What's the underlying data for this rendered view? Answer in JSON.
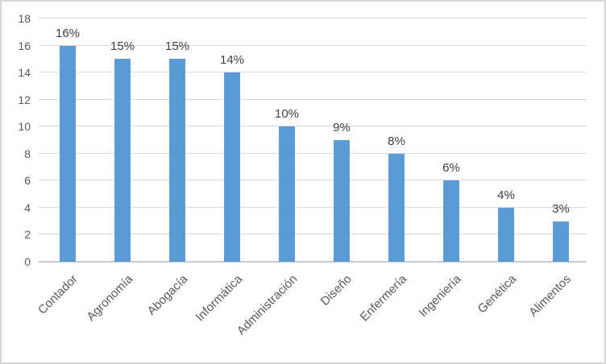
{
  "chart_data": {
    "type": "bar",
    "title": "",
    "xlabel": "",
    "ylabel": "",
    "categories": [
      "Contador",
      "Agronomía",
      "Abogacía",
      "Informática",
      "Administración",
      "Diseño",
      "Enfermería",
      "Ingeniería",
      "Genética",
      "Alimentos"
    ],
    "values": [
      16,
      15,
      15,
      14,
      10,
      9,
      8,
      6,
      4,
      3
    ],
    "data_labels": [
      "16%",
      "15%",
      "15%",
      "14%",
      "10%",
      "9%",
      "8%",
      "6%",
      "4%",
      "3%"
    ],
    "ylim": [
      0,
      18
    ],
    "yticks": [
      0,
      2,
      4,
      6,
      8,
      10,
      12,
      14,
      16,
      18
    ],
    "grid": "horizontal",
    "legend": "none",
    "bar_color": "#5B9BD5",
    "gridline_color": "#D9D9D9",
    "axis_line_color": "#C9C9C9",
    "tick_label_color": "#595959",
    "data_label_color": "#404040",
    "border_color": "#D7D7D7",
    "background": "#FFFFFF"
  }
}
